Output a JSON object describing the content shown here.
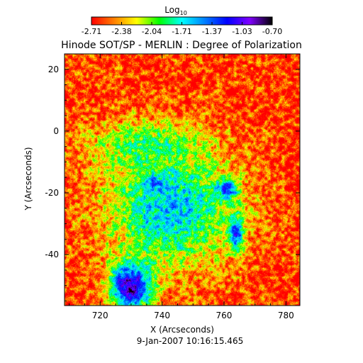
{
  "chart_data": {
    "type": "heatmap",
    "title": "Hinode SOT/SP - MERLIN : Degree of Polarization",
    "footer": "9-Jan-2007 10:16:15.465",
    "xlabel": "X (Arcseconds)",
    "ylabel": "Y (Arcseconds)",
    "xlim": [
      708.5,
      784.5
    ],
    "ylim": [
      -56.5,
      25
    ],
    "xticks": [
      720,
      740,
      760,
      780
    ],
    "yticks": [
      -40,
      -20,
      0,
      20
    ],
    "grid": false,
    "colorbar": {
      "label_base": "Log",
      "label_sub": "10",
      "range": [
        -2.71,
        -0.7
      ],
      "tick_labels": [
        "-2.71",
        "-2.38",
        "-2.04",
        "-1.71",
        "-1.37",
        "-1.03",
        "-0.70"
      ],
      "placement": "top",
      "colormap": [
        "#ff0000",
        "#ff8000",
        "#ffff00",
        "#00ff00",
        "#00ffff",
        "#0080ff",
        "#0000ff",
        "#8000ff",
        "#000000"
      ]
    },
    "features": [
      {
        "x": 730,
        "y": -50,
        "sx": 8,
        "sy": 9,
        "value": -0.78
      },
      {
        "x": 738,
        "y": -17,
        "sx": 5,
        "sy": 3.5,
        "value": -1.02
      },
      {
        "x": 761,
        "y": -19,
        "sx": 4,
        "sy": 4,
        "value": -1.05
      },
      {
        "x": 764,
        "y": -33,
        "sx": 2.5,
        "sy": 7,
        "value": -1.08
      },
      {
        "x": 743,
        "y": -25,
        "sx": 24,
        "sy": 22,
        "value": -1.58
      },
      {
        "x": 735,
        "y": -5,
        "sx": 20,
        "sy": 9,
        "value": -1.9
      }
    ],
    "background_value": -2.6
  }
}
